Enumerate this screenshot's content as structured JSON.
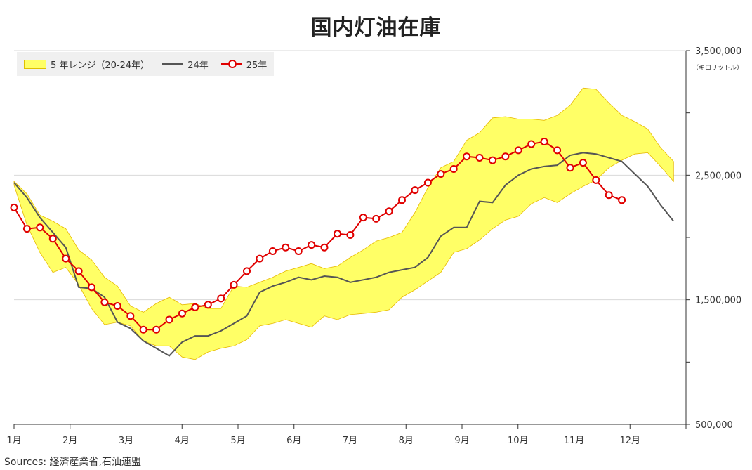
{
  "title": "国内灯油在庫",
  "source": "Sources: 経済産業省,石油連盟",
  "unit": "（キロリットル）",
  "legend": {
    "band": "5 年レンジ（20-24年）",
    "line24": "24年",
    "line25": "25年"
  },
  "colors": {
    "band_fill": "#ffff66",
    "band_stroke": "#e6b800",
    "line24": "#555555",
    "line25": "#e00000"
  },
  "chart_data": {
    "type": "line",
    "title": "国内灯油在庫",
    "ylabel": "（キロリットル）",
    "y_axis_side": "right",
    "ylim": [
      500000,
      3500000
    ],
    "y_ticks": [
      500000,
      1500000,
      2500000,
      3500000
    ],
    "y_tick_labels": [
      "500,000",
      "1,500,000",
      "2,500,000",
      "3,500,000"
    ],
    "x_categories": [
      "1月",
      "2月",
      "3月",
      "4月",
      "5月",
      "6月",
      "7月",
      "8月",
      "9月",
      "10月",
      "11月",
      "12月"
    ],
    "x_unit": "week (0 = start of January, 4.33 per month)",
    "grid": "horizontal",
    "legend_position": "top-left",
    "series": [
      {
        "name": "5 年レンジ（20-24年）",
        "type": "band",
        "x": [
          0,
          1,
          2,
          3,
          4,
          5,
          6,
          7,
          8,
          9,
          10,
          11,
          12,
          13,
          14,
          15,
          16,
          17,
          18,
          19,
          20,
          21,
          22,
          23,
          24,
          25,
          26,
          27,
          28,
          29,
          30,
          31,
          32,
          33,
          34,
          35,
          36,
          37,
          38,
          39,
          40,
          41,
          42,
          43,
          44,
          45,
          46,
          47,
          48,
          49,
          50,
          51
        ],
        "upper": [
          2450000,
          2350000,
          2180000,
          2130000,
          2070000,
          1900000,
          1820000,
          1680000,
          1610000,
          1450000,
          1400000,
          1470000,
          1520000,
          1460000,
          1470000,
          1430000,
          1430000,
          1610000,
          1600000,
          1640000,
          1680000,
          1730000,
          1760000,
          1790000,
          1750000,
          1770000,
          1840000,
          1900000,
          1970000,
          2000000,
          2040000,
          2200000,
          2400000,
          2560000,
          2610000,
          2780000,
          2840000,
          2960000,
          2970000,
          2950000,
          2950000,
          2940000,
          2980000,
          3060000,
          3200000,
          3190000,
          3080000,
          2980000,
          2930000,
          2870000,
          2720000,
          2610000
        ],
        "lower": [
          2420000,
          2100000,
          1880000,
          1720000,
          1760000,
          1620000,
          1430000,
          1300000,
          1320000,
          1290000,
          1170000,
          1130000,
          1130000,
          1040000,
          1020000,
          1080000,
          1110000,
          1130000,
          1180000,
          1290000,
          1310000,
          1340000,
          1310000,
          1280000,
          1370000,
          1340000,
          1380000,
          1390000,
          1400000,
          1420000,
          1520000,
          1580000,
          1650000,
          1720000,
          1880000,
          1910000,
          1980000,
          2070000,
          2140000,
          2170000,
          2270000,
          2320000,
          2280000,
          2350000,
          2410000,
          2460000,
          2560000,
          2620000,
          2670000,
          2680000,
          2570000,
          2450000
        ]
      },
      {
        "name": "24年",
        "type": "line",
        "x": [
          0,
          1,
          2,
          3,
          4,
          5,
          6,
          7,
          8,
          9,
          10,
          11,
          12,
          13,
          14,
          15,
          16,
          17,
          18,
          19,
          20,
          21,
          22,
          23,
          24,
          25,
          26,
          27,
          28,
          29,
          30,
          31,
          32,
          33,
          34,
          35,
          36,
          37,
          38,
          39,
          40,
          41,
          42,
          43,
          44,
          45,
          46,
          47,
          48,
          49,
          50,
          51
        ],
        "values": [
          2440000,
          2320000,
          2160000,
          2040000,
          1920000,
          1600000,
          1590000,
          1520000,
          1320000,
          1270000,
          1170000,
          1110000,
          1050000,
          1160000,
          1210000,
          1210000,
          1250000,
          1310000,
          1370000,
          1560000,
          1610000,
          1640000,
          1680000,
          1660000,
          1690000,
          1680000,
          1640000,
          1660000,
          1680000,
          1720000,
          1740000,
          1760000,
          1840000,
          2010000,
          2080000,
          2080000,
          2290000,
          2280000,
          2420000,
          2500000,
          2550000,
          2570000,
          2580000,
          2660000,
          2680000,
          2670000,
          2640000,
          2610000,
          2510000,
          2410000,
          2260000,
          2130000
        ]
      },
      {
        "name": "25年",
        "type": "line",
        "markers": true,
        "x": [
          0,
          1,
          2,
          3,
          4,
          5,
          6,
          7,
          8,
          9,
          10,
          11,
          12,
          13,
          14,
          15,
          16,
          17,
          18,
          19,
          20,
          21,
          22,
          23,
          24,
          25,
          26,
          27,
          28,
          29,
          30,
          31,
          32,
          33,
          34,
          35,
          36,
          37,
          38,
          39,
          40,
          41,
          42,
          43,
          44,
          45,
          46,
          47
        ],
        "values": [
          2240000,
          2070000,
          2080000,
          1990000,
          1830000,
          1730000,
          1600000,
          1480000,
          1450000,
          1370000,
          1260000,
          1260000,
          1340000,
          1390000,
          1440000,
          1460000,
          1510000,
          1620000,
          1730000,
          1830000,
          1890000,
          1920000,
          1890000,
          1940000,
          1920000,
          2030000,
          2020000,
          2160000,
          2150000,
          2210000,
          2300000,
          2380000,
          2440000,
          2510000,
          2550000,
          2650000,
          2640000,
          2620000,
          2650000,
          2700000,
          2750000,
          2770000,
          2700000,
          2560000,
          2600000,
          2460000,
          2340000,
          2300000
        ]
      }
    ]
  }
}
